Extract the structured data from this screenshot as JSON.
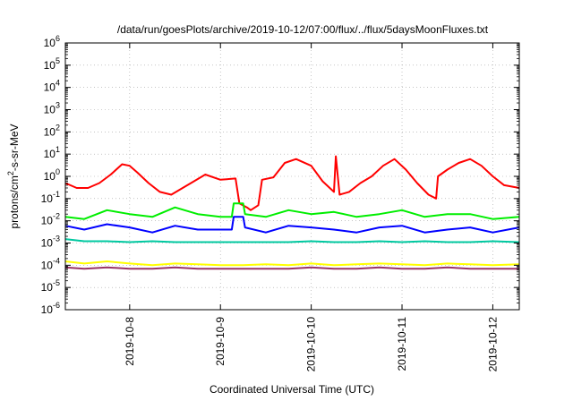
{
  "chart_data": {
    "type": "line",
    "title": "/data/run/goesPlots/archive/2019-10-12/07:00/flux/../flux/5daysMoonFluxes.txt",
    "xlabel": "Coordinated Universal Time (UTC)",
    "ylabel": "protons/cm²-s-sr-MeV",
    "ylabel_parts": {
      "a": "protons/cm",
      "sup": "2",
      "b": "-s-sr-MeV"
    },
    "y_scale": "log",
    "ylim": [
      1e-06,
      1000000.0
    ],
    "y_ticks": [
      {
        "value": 1e-06,
        "base": "10",
        "exp": "-6"
      },
      {
        "value": 1e-05,
        "base": "10",
        "exp": "-5"
      },
      {
        "value": 0.0001,
        "base": "10",
        "exp": "-4"
      },
      {
        "value": 0.001,
        "base": "10",
        "exp": "-3"
      },
      {
        "value": 0.01,
        "base": "10",
        "exp": "-2"
      },
      {
        "value": 0.1,
        "base": "10",
        "exp": "-1"
      },
      {
        "value": 1.0,
        "base": "10",
        "exp": "0"
      },
      {
        "value": 10.0,
        "base": "10",
        "exp": "1"
      },
      {
        "value": 100.0,
        "base": "10",
        "exp": "2"
      },
      {
        "value": 1000.0,
        "base": "10",
        "exp": "3"
      },
      {
        "value": 10000.0,
        "base": "10",
        "exp": "4"
      },
      {
        "value": 100000.0,
        "base": "10",
        "exp": "5"
      },
      {
        "value": 1000000.0,
        "base": "10",
        "exp": "6"
      }
    ],
    "xlim": [
      "2019-10-07T07:00",
      "2019-10-12T07:00"
    ],
    "x_ticks": [
      "2019-10-8",
      "2019-10-9",
      "2019-10-10",
      "2019-10-11",
      "2019-10-12"
    ],
    "x_tick_dates": [
      "2019-10-08T00:00",
      "2019-10-09T00:00",
      "2019-10-10T00:00",
      "2019-10-11T00:00",
      "2019-10-12T00:00"
    ],
    "grid": true,
    "grid_style": "dotted",
    "legend": "none",
    "series": [
      {
        "color": "#ff0000",
        "x": [
          "2019-10-07T07:00",
          "2019-10-07T10:00",
          "2019-10-07T13:00",
          "2019-10-07T16:00",
          "2019-10-07T19:00",
          "2019-10-07T22:00",
          "2019-10-08T00:00",
          "2019-10-08T02:00",
          "2019-10-08T05:00",
          "2019-10-08T08:00",
          "2019-10-08T11:00",
          "2019-10-08T14:00",
          "2019-10-08T17:00",
          "2019-10-08T20:00",
          "2019-10-09T00:00",
          "2019-10-09T04:00",
          "2019-10-09T05:00",
          "2019-10-09T07:00",
          "2019-10-09T08:00",
          "2019-10-09T10:00",
          "2019-10-09T11:00",
          "2019-10-09T14:00",
          "2019-10-09T17:00",
          "2019-10-09T20:00",
          "2019-10-10T00:00",
          "2019-10-10T03:00",
          "2019-10-10T06:00",
          "2019-10-10T06:30",
          "2019-10-10T07:30",
          "2019-10-10T10:00",
          "2019-10-10T13:00",
          "2019-10-10T16:00",
          "2019-10-10T19:00",
          "2019-10-10T22:00",
          "2019-10-11T01:00",
          "2019-10-11T04:00",
          "2019-10-11T07:00",
          "2019-10-11T09:00",
          "2019-10-11T09:30",
          "2019-10-11T12:00",
          "2019-10-11T15:00",
          "2019-10-11T18:00",
          "2019-10-11T21:00",
          "2019-10-12T00:00",
          "2019-10-12T03:00",
          "2019-10-12T07:00"
        ],
        "y": [
          0.5,
          0.3,
          0.3,
          0.5,
          1.2,
          3.5,
          3.0,
          1.5,
          0.5,
          0.2,
          0.15,
          0.3,
          0.6,
          1.2,
          0.7,
          0.8,
          0.06,
          0.04,
          0.03,
          0.05,
          0.7,
          0.9,
          4.0,
          6.0,
          3.0,
          0.6,
          0.2,
          8.0,
          0.15,
          0.2,
          0.5,
          1.0,
          3.0,
          6.0,
          2.0,
          0.5,
          0.15,
          0.1,
          1.0,
          2.0,
          4.0,
          6.0,
          3.0,
          1.0,
          0.4,
          0.3
        ]
      },
      {
        "color": "#00ee00",
        "x": [
          "2019-10-07T07:00",
          "2019-10-07T12:00",
          "2019-10-07T18:00",
          "2019-10-08T00:00",
          "2019-10-08T06:00",
          "2019-10-08T12:00",
          "2019-10-08T18:00",
          "2019-10-09T00:00",
          "2019-10-09T03:00",
          "2019-10-09T03:30",
          "2019-10-09T06:00",
          "2019-10-09T06:30",
          "2019-10-09T12:00",
          "2019-10-09T18:00",
          "2019-10-10T00:00",
          "2019-10-10T06:00",
          "2019-10-10T12:00",
          "2019-10-10T18:00",
          "2019-10-11T00:00",
          "2019-10-11T06:00",
          "2019-10-11T12:00",
          "2019-10-11T18:00",
          "2019-10-12T00:00",
          "2019-10-12T07:00"
        ],
        "y": [
          0.015,
          0.012,
          0.03,
          0.02,
          0.015,
          0.04,
          0.02,
          0.015,
          0.015,
          0.06,
          0.06,
          0.02,
          0.015,
          0.03,
          0.02,
          0.025,
          0.015,
          0.02,
          0.03,
          0.015,
          0.02,
          0.02,
          0.012,
          0.015
        ]
      },
      {
        "color": "#0000ff",
        "x": [
          "2019-10-07T07:00",
          "2019-10-07T12:00",
          "2019-10-07T18:00",
          "2019-10-08T00:00",
          "2019-10-08T06:00",
          "2019-10-08T12:00",
          "2019-10-08T18:00",
          "2019-10-09T00:00",
          "2019-10-09T03:00",
          "2019-10-09T03:30",
          "2019-10-09T06:00",
          "2019-10-09T06:30",
          "2019-10-09T12:00",
          "2019-10-09T18:00",
          "2019-10-10T00:00",
          "2019-10-10T06:00",
          "2019-10-10T12:00",
          "2019-10-10T18:00",
          "2019-10-11T00:00",
          "2019-10-11T06:00",
          "2019-10-11T12:00",
          "2019-10-11T18:00",
          "2019-10-12T00:00",
          "2019-10-12T07:00"
        ],
        "y": [
          0.006,
          0.004,
          0.007,
          0.005,
          0.003,
          0.006,
          0.004,
          0.004,
          0.004,
          0.015,
          0.015,
          0.005,
          0.003,
          0.006,
          0.005,
          0.004,
          0.003,
          0.005,
          0.006,
          0.003,
          0.004,
          0.005,
          0.003,
          0.005
        ]
      },
      {
        "color": "#00c8a0",
        "x": [
          "2019-10-07T07:00",
          "2019-10-07T12:00",
          "2019-10-07T18:00",
          "2019-10-08T00:00",
          "2019-10-08T06:00",
          "2019-10-08T12:00",
          "2019-10-08T18:00",
          "2019-10-09T00:00",
          "2019-10-09T06:00",
          "2019-10-09T12:00",
          "2019-10-09T18:00",
          "2019-10-10T00:00",
          "2019-10-10T06:00",
          "2019-10-10T12:00",
          "2019-10-10T18:00",
          "2019-10-11T00:00",
          "2019-10-11T06:00",
          "2019-10-11T12:00",
          "2019-10-11T18:00",
          "2019-10-12T00:00",
          "2019-10-12T07:00"
        ],
        "y": [
          0.0015,
          0.0012,
          0.0012,
          0.0011,
          0.0012,
          0.0011,
          0.0011,
          0.0011,
          0.0011,
          0.0011,
          0.0011,
          0.0012,
          0.0011,
          0.0011,
          0.0012,
          0.0011,
          0.0012,
          0.0011,
          0.0011,
          0.0012,
          0.0011
        ]
      },
      {
        "color": "#ffff00",
        "x": [
          "2019-10-07T07:00",
          "2019-10-07T12:00",
          "2019-10-07T18:00",
          "2019-10-08T00:00",
          "2019-10-08T06:00",
          "2019-10-08T12:00",
          "2019-10-08T18:00",
          "2019-10-09T00:00",
          "2019-10-09T06:00",
          "2019-10-09T12:00",
          "2019-10-09T18:00",
          "2019-10-10T00:00",
          "2019-10-10T06:00",
          "2019-10-10T12:00",
          "2019-10-10T18:00",
          "2019-10-11T00:00",
          "2019-10-11T06:00",
          "2019-10-11T12:00",
          "2019-10-11T18:00",
          "2019-10-12T00:00",
          "2019-10-12T07:00"
        ],
        "y": [
          0.00015,
          0.00012,
          0.00015,
          0.00012,
          0.0001,
          0.00012,
          0.00011,
          0.0001,
          0.0001,
          0.00011,
          0.0001,
          0.00012,
          0.0001,
          0.00011,
          0.00012,
          0.00011,
          0.0001,
          0.00012,
          0.00011,
          0.0001,
          0.00011
        ]
      },
      {
        "color": "#993366",
        "x": [
          "2019-10-07T07:00",
          "2019-10-07T12:00",
          "2019-10-07T18:00",
          "2019-10-08T00:00",
          "2019-10-08T06:00",
          "2019-10-08T12:00",
          "2019-10-08T18:00",
          "2019-10-09T00:00",
          "2019-10-09T06:00",
          "2019-10-09T12:00",
          "2019-10-09T18:00",
          "2019-10-10T00:00",
          "2019-10-10T06:00",
          "2019-10-10T12:00",
          "2019-10-10T18:00",
          "2019-10-11T00:00",
          "2019-10-11T06:00",
          "2019-10-11T12:00",
          "2019-10-11T18:00",
          "2019-10-12T00:00",
          "2019-10-12T07:00"
        ],
        "y": [
          8e-05,
          7e-05,
          8e-05,
          7e-05,
          7e-05,
          8e-05,
          7e-05,
          7e-05,
          7e-05,
          7e-05,
          7e-05,
          8e-05,
          7e-05,
          7e-05,
          8e-05,
          7e-05,
          7e-05,
          8e-05,
          7e-05,
          7e-05,
          7e-05
        ]
      }
    ]
  }
}
